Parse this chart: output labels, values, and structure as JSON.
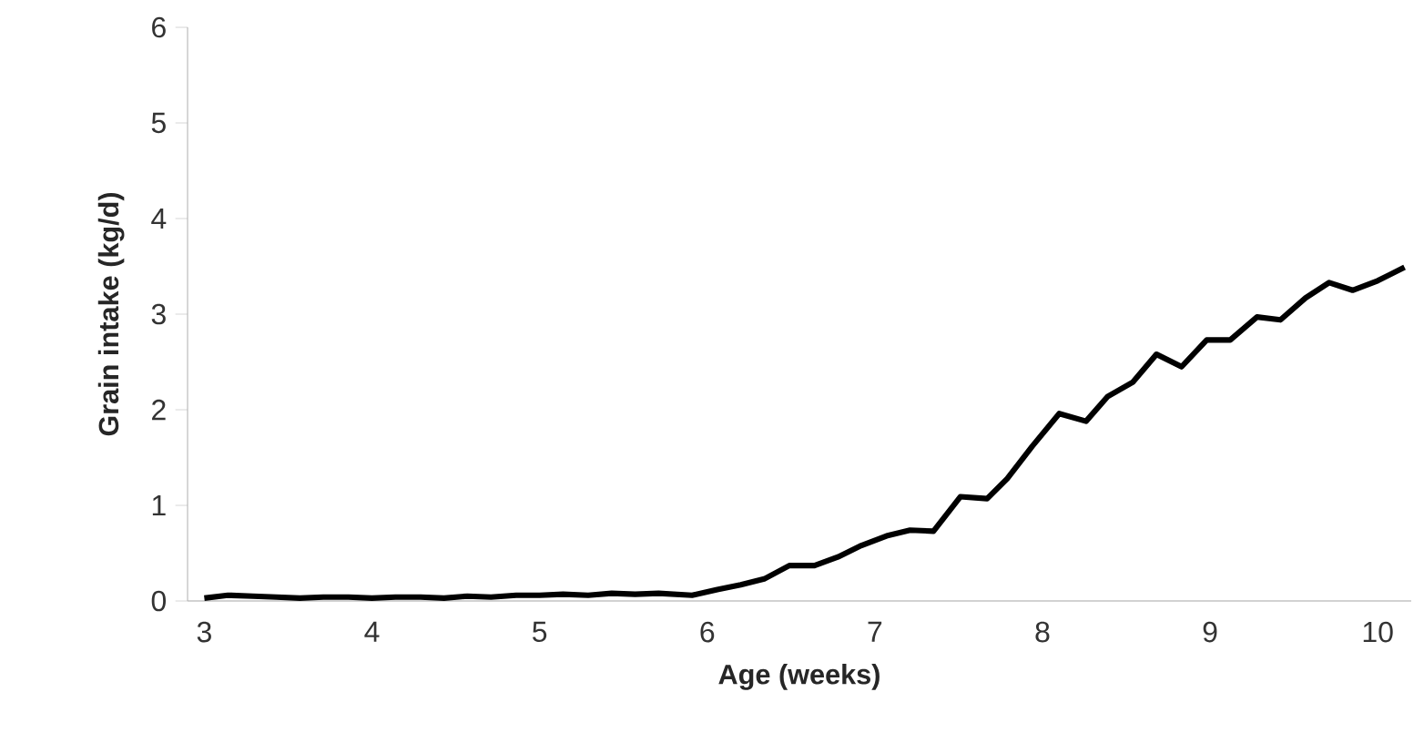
{
  "chart_data": {
    "type": "line",
    "xlabel": "Age (weeks)",
    "ylabel": "Grain intake (kg/d)",
    "xlim": [
      2.9,
      10.2
    ],
    "xticks": [
      3,
      4,
      5,
      6,
      7,
      8,
      9,
      10
    ],
    "ylim": [
      0,
      6
    ],
    "yticks": [
      0,
      1,
      2,
      3,
      4,
      5,
      6
    ],
    "grid": false,
    "marker": "none",
    "line_style": "solid",
    "series": [
      {
        "color": "#000000",
        "x": [
          3.0,
          3.14,
          3.29,
          3.43,
          3.57,
          3.71,
          3.86,
          4.0,
          4.14,
          4.29,
          4.43,
          4.57,
          4.71,
          4.86,
          5.0,
          5.14,
          5.29,
          5.43,
          5.57,
          5.71,
          5.91,
          6.06,
          6.2,
          6.34,
          6.49,
          6.64,
          6.78,
          6.92,
          7.07,
          7.21,
          7.35,
          7.51,
          7.67,
          7.79,
          7.94,
          8.1,
          8.26,
          8.39,
          8.54,
          8.68,
          8.83,
          8.98,
          9.12,
          9.28,
          9.42,
          9.57,
          9.71,
          9.85,
          10.0,
          10.16
        ],
        "values": [
          0.03,
          0.06,
          0.05,
          0.04,
          0.03,
          0.04,
          0.04,
          0.03,
          0.04,
          0.04,
          0.03,
          0.05,
          0.04,
          0.06,
          0.06,
          0.07,
          0.06,
          0.08,
          0.07,
          0.08,
          0.06,
          0.12,
          0.17,
          0.23,
          0.37,
          0.37,
          0.46,
          0.58,
          0.68,
          0.74,
          0.73,
          1.09,
          1.07,
          1.28,
          1.62,
          1.96,
          1.88,
          2.14,
          2.29,
          2.58,
          2.45,
          2.73,
          2.73,
          2.97,
          2.94,
          3.17,
          3.33,
          3.25,
          3.35,
          3.49
        ]
      }
    ]
  }
}
